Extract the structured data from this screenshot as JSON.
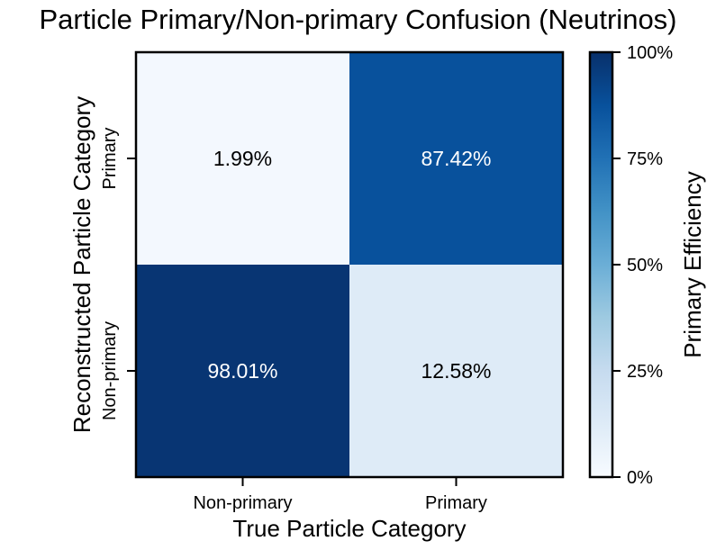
{
  "chart_data": {
    "type": "heatmap",
    "title": "Particle Primary/Non-primary Confusion (Neutrinos)",
    "xlabel": "True Particle Category",
    "ylabel": "Reconstructed Particle Category",
    "x_categories": [
      "Non-primary",
      "Primary"
    ],
    "y_categories": [
      "Primary",
      "Non-primary"
    ],
    "cells": [
      {
        "x": "Non-primary",
        "y": "Primary",
        "value": 1.99,
        "label": "1.99%"
      },
      {
        "x": "Primary",
        "y": "Primary",
        "value": 87.42,
        "label": "87.42%"
      },
      {
        "x": "Non-primary",
        "y": "Non-primary",
        "value": 98.01,
        "label": "98.01%"
      },
      {
        "x": "Primary",
        "y": "Non-primary",
        "value": 12.58,
        "label": "12.58%"
      }
    ],
    "colorbar": {
      "label": "Primary Efficiency",
      "range": [
        0,
        100
      ],
      "ticks": [
        0,
        25,
        50,
        75,
        100
      ],
      "tick_labels": [
        "0%",
        "25%",
        "50%",
        "75%",
        "100%"
      ],
      "colormap": "Blues"
    },
    "grid": false
  }
}
